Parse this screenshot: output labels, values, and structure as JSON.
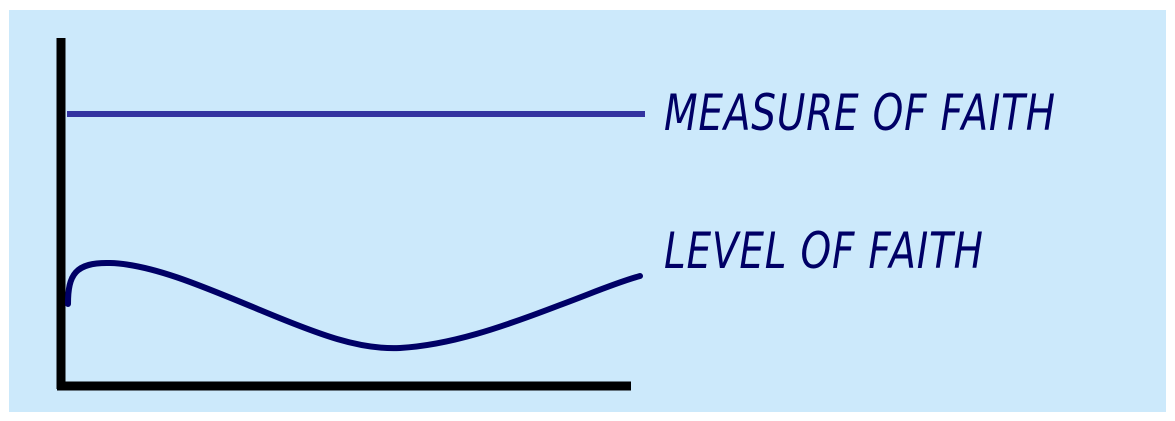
{
  "diagram": {
    "measure_label": "MEASURE OF FAITH",
    "level_label": "LEVEL OF FAITH"
  },
  "colors": {
    "background": "#CCE9FB",
    "measure_line": "#3333A0",
    "level_curve": "#000066",
    "axes": "#000000",
    "label_text": "#000066"
  }
}
